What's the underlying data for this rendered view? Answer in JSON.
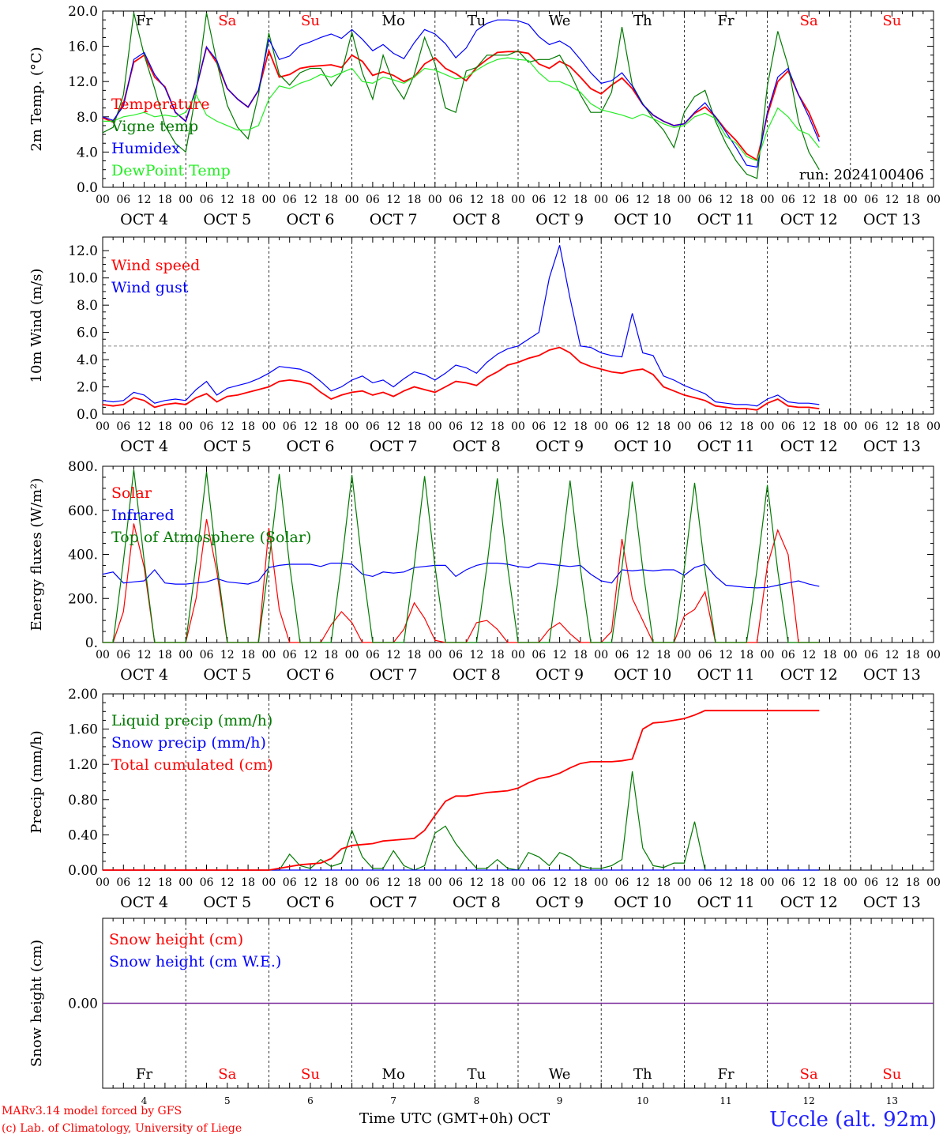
{
  "footer": {
    "model": "MARv3.14 model forced by GFS",
    "lab": "(c) Lab. of Climatology, University of Liege",
    "xlabel": "Time UTC (GMT+0h)",
    "month": "OCT",
    "station": "Uccle (alt. 92m)"
  },
  "colors": {
    "red": "#ff0000",
    "blue": "#0000ff",
    "green": "#007a00",
    "lightgreen": "#22ee22",
    "purple": "#7a2a9a"
  },
  "chart_data": [
    {
      "type": "line",
      "ylabel": "2m Temp. (°C)",
      "ylim": [
        0,
        20
      ],
      "yticks": [
        "0.0",
        "4.0",
        "8.0",
        "12.0",
        "16.0",
        "20.0"
      ],
      "x": "hours from 2024-10-04 00 UTC, step 3h (0..240)",
      "hour_tick_labels": [
        "00",
        "06",
        "12",
        "18"
      ],
      "date_labels": [
        "OCT 4",
        "OCT 5",
        "OCT 6",
        "OCT 7",
        "OCT 8",
        "OCT 9",
        "OCT 10",
        "OCT 11",
        "OCT 12",
        "OCT 13"
      ],
      "weekday_labels": [
        "Fr",
        "Sa",
        "Su",
        "Mo",
        "Tu",
        "We",
        "Th",
        "Fr",
        "Sa",
        "Su"
      ],
      "weekday_colors": [
        "#000000",
        "#ff0000",
        "#ff0000",
        "#000000",
        "#000000",
        "#000000",
        "#000000",
        "#000000",
        "#ff0000",
        "#ff0000"
      ],
      "annotation": "run: 2024100406",
      "series": [
        {
          "name": "Temperature",
          "color": "#ff0000",
          "values": [
            7.9,
            7.4,
            9.5,
            14.2,
            15.0,
            12.5,
            11.4,
            8.5,
            7.5,
            11.2,
            15.9,
            14.1,
            11.2,
            10.0,
            9.1,
            11.0,
            15.5,
            12.5,
            12.8,
            13.5,
            13.7,
            13.8,
            13.9,
            13.6,
            15.0,
            14.3,
            12.7,
            13.1,
            12.7,
            12.0,
            12.5,
            14.0,
            14.7,
            13.5,
            12.9,
            12.1,
            13.6,
            14.5,
            15.3,
            15.4,
            15.4,
            15.2,
            14.0,
            13.5,
            14.3,
            13.7,
            12.5,
            11.2,
            10.6,
            11.6,
            12.4,
            11.2,
            9.4,
            8.2,
            7.5,
            7.0,
            7.2,
            8.4,
            9.1,
            8.0,
            6.5,
            5.3,
            3.8,
            3.1,
            8.2,
            12.0,
            13.2,
            10.5,
            8.5,
            5.7,
            null
          ]
        },
        {
          "name": "Vigne temp",
          "color": "#007a00",
          "values": [
            6.2,
            6.8,
            10.5,
            19.8,
            15.0,
            11.2,
            7.0,
            5.0,
            4.0,
            10.8,
            19.8,
            14.2,
            9.3,
            6.8,
            5.5,
            10.5,
            17.5,
            12.8,
            11.6,
            13.0,
            13.5,
            13.5,
            11.5,
            13.0,
            17.6,
            13.0,
            10.0,
            15.0,
            11.8,
            10.0,
            12.8,
            17.0,
            14.0,
            9.0,
            8.5,
            13.2,
            13.6,
            15.0,
            15.0,
            15.0,
            15.5,
            14.2,
            14.5,
            14.5,
            15.0,
            13.0,
            10.5,
            8.5,
            8.5,
            10.8,
            18.2,
            11.6,
            9.5,
            7.8,
            6.5,
            4.5,
            8.5,
            10.3,
            11.0,
            7.5,
            5.0,
            3.0,
            1.5,
            1.0,
            11.5,
            17.7,
            13.8,
            7.5,
            4.0,
            2.0,
            null
          ]
        },
        {
          "name": "Humidex",
          "color": "#0000ff",
          "values": [
            8.0,
            7.6,
            9.2,
            14.5,
            15.3,
            12.8,
            11.3,
            8.5,
            7.5,
            11.2,
            15.9,
            14.4,
            11.2,
            10.0,
            9.1,
            11.0,
            16.8,
            14.5,
            14.9,
            16.1,
            16.5,
            17.0,
            17.4,
            16.9,
            17.9,
            16.8,
            15.5,
            16.2,
            15.2,
            14.6,
            16.4,
            17.9,
            17.4,
            16.3,
            14.7,
            15.8,
            17.8,
            18.6,
            19.0,
            19.0,
            18.9,
            18.5,
            17.1,
            16.2,
            16.6,
            15.9,
            14.5,
            13.0,
            11.8,
            12.1,
            13.0,
            11.5,
            9.4,
            8.2,
            7.5,
            7.0,
            7.2,
            8.5,
            9.6,
            8.0,
            6.3,
            4.5,
            2.5,
            2.3,
            8.5,
            12.5,
            13.5,
            10.5,
            8.0,
            5.2,
            null
          ]
        },
        {
          "name": "DewPoint Temp",
          "color": "#22ee22",
          "values": [
            7.5,
            7.5,
            8.0,
            8.2,
            8.5,
            8.0,
            8.2,
            8.0,
            8.5,
            10.5,
            8.2,
            7.5,
            7.0,
            6.5,
            6.5,
            7.0,
            10.0,
            11.5,
            11.2,
            11.8,
            12.2,
            12.8,
            12.5,
            13.0,
            13.5,
            12.0,
            11.8,
            12.5,
            12.2,
            11.8,
            12.5,
            13.5,
            13.3,
            12.8,
            12.3,
            12.5,
            13.3,
            14.0,
            14.5,
            14.7,
            14.5,
            14.4,
            13.0,
            12.0,
            12.0,
            11.5,
            10.8,
            9.5,
            8.8,
            8.5,
            8.2,
            7.8,
            8.3,
            7.8,
            7.2,
            6.8,
            7.0,
            8.0,
            8.4,
            7.8,
            5.8,
            5.0,
            3.5,
            3.0,
            6.5,
            9.0,
            8.0,
            6.5,
            6.0,
            4.5,
            null
          ]
        }
      ]
    },
    {
      "type": "line",
      "ylabel": "10m Wind (m/s)",
      "ylim": [
        0,
        13
      ],
      "yticks": [
        "0.0",
        "2.0",
        "4.0",
        "6.0",
        "8.0",
        "10.0",
        "12.0"
      ],
      "reference_line": 5,
      "series": [
        {
          "name": "Wind speed",
          "color": "#ff0000",
          "values": [
            0.7,
            0.6,
            0.7,
            1.2,
            1.0,
            0.5,
            0.7,
            0.8,
            0.7,
            1.2,
            1.5,
            0.9,
            1.3,
            1.4,
            1.6,
            1.8,
            2.0,
            2.4,
            2.5,
            2.4,
            2.2,
            1.6,
            1.1,
            1.4,
            1.6,
            1.7,
            1.4,
            1.6,
            1.3,
            1.7,
            2.0,
            1.8,
            1.6,
            2.0,
            2.4,
            2.3,
            2.1,
            2.7,
            3.1,
            3.6,
            3.8,
            4.1,
            4.3,
            4.7,
            4.9,
            4.5,
            3.8,
            3.5,
            3.3,
            3.1,
            3.0,
            3.2,
            3.3,
            2.9,
            2.0,
            1.7,
            1.4,
            1.2,
            1.0,
            0.6,
            0.5,
            0.4,
            0.4,
            0.3,
            0.8,
            1.1,
            0.6,
            0.5,
            0.5,
            0.4,
            null
          ]
        },
        {
          "name": "Wind gust",
          "color": "#0000ff",
          "values": [
            1.0,
            0.9,
            1.0,
            1.6,
            1.4,
            0.8,
            1.0,
            1.1,
            1.0,
            1.8,
            2.4,
            1.4,
            1.9,
            2.1,
            2.3,
            2.6,
            3.0,
            3.5,
            3.4,
            3.3,
            3.0,
            2.4,
            1.7,
            2.0,
            2.5,
            2.8,
            2.3,
            2.5,
            2.0,
            2.6,
            3.1,
            2.9,
            2.5,
            3.0,
            3.6,
            3.4,
            3.0,
            3.8,
            4.4,
            4.8,
            5.0,
            5.5,
            6.0,
            10.0,
            12.4,
            8.5,
            5.0,
            4.9,
            4.5,
            4.3,
            4.2,
            7.4,
            4.5,
            4.3,
            2.8,
            2.5,
            2.1,
            1.8,
            1.5,
            0.9,
            0.8,
            0.7,
            0.7,
            0.6,
            1.1,
            1.4,
            0.9,
            0.8,
            0.8,
            0.7,
            null
          ]
        }
      ]
    },
    {
      "type": "line",
      "ylabel": "Energy fluxes (W/m²)",
      "ylim": [
        0,
        800
      ],
      "yticks": [
        "0.",
        "200.",
        "400.",
        "600.",
        "800."
      ],
      "series": [
        {
          "name": "Solar",
          "color": "#ff0000",
          "values": [
            0,
            0,
            140,
            540,
            340,
            0,
            0,
            0,
            0,
            200,
            560,
            320,
            0,
            0,
            0,
            0,
            520,
            150,
            0,
            0,
            0,
            0,
            80,
            140,
            90,
            0,
            0,
            0,
            0,
            60,
            180,
            110,
            10,
            0,
            0,
            0,
            90,
            100,
            60,
            0,
            0,
            0,
            0,
            60,
            90,
            40,
            0,
            0,
            0,
            50,
            470,
            200,
            100,
            0,
            0,
            0,
            120,
            150,
            230,
            0,
            0,
            0,
            0,
            0,
            350,
            510,
            400,
            0,
            0,
            0,
            null
          ]
        },
        {
          "name": "Infrared",
          "color": "#0000ff",
          "values": [
            310,
            320,
            270,
            275,
            280,
            330,
            270,
            265,
            265,
            270,
            275,
            290,
            275,
            270,
            265,
            280,
            340,
            350,
            355,
            355,
            355,
            345,
            360,
            360,
            355,
            310,
            300,
            320,
            315,
            320,
            340,
            345,
            350,
            350,
            300,
            330,
            350,
            360,
            360,
            355,
            345,
            340,
            360,
            355,
            350,
            345,
            350,
            310,
            280,
            270,
            330,
            325,
            330,
            325,
            330,
            330,
            305,
            340,
            355,
            300,
            260,
            255,
            250,
            248,
            250,
            260,
            270,
            280,
            265,
            255,
            null
          ]
        },
        {
          "name": "Top of Atmosphere (Solar)",
          "color": "#007a00",
          "values": [
            0,
            0,
            370,
            785,
            370,
            0,
            0,
            0,
            0,
            360,
            775,
            360,
            0,
            0,
            0,
            0,
            360,
            765,
            350,
            0,
            0,
            0,
            0,
            355,
            760,
            350,
            0,
            0,
            0,
            0,
            350,
            755,
            345,
            0,
            0,
            0,
            0,
            345,
            745,
            340,
            0,
            0,
            0,
            0,
            345,
            735,
            335,
            0,
            0,
            0,
            340,
            730,
            335,
            0,
            0,
            0,
            335,
            725,
            330,
            0,
            0,
            0,
            0,
            330,
            715,
            325,
            0,
            0,
            0,
            0,
            null
          ]
        }
      ]
    },
    {
      "type": "line",
      "ylabel": "Precip (mm/h)",
      "ylim": [
        0,
        2.0
      ],
      "yticks": [
        "0.00",
        "0.40",
        "0.80",
        "1.20",
        "1.60",
        "2.00"
      ],
      "series": [
        {
          "name": "Liquid precip (mm/h)",
          "color": "#007a00",
          "values": [
            0,
            0,
            0,
            0,
            0,
            0,
            0,
            0,
            0,
            0,
            0,
            0,
            0,
            0,
            0,
            0,
            0,
            0,
            0.18,
            0.05,
            0.02,
            0.12,
            0.04,
            0.08,
            0.45,
            0.15,
            0.02,
            0.02,
            0.22,
            0.05,
            0.0,
            0.05,
            0.42,
            0.5,
            0.3,
            0.15,
            0.02,
            0.02,
            0.12,
            0.02,
            0.0,
            0.2,
            0.15,
            0.05,
            0.2,
            0.15,
            0.05,
            0.02,
            0.02,
            0.05,
            0.12,
            1.12,
            0.25,
            0.05,
            0.03,
            0.08,
            0.08,
            0.55,
            0.0,
            0.0,
            0.0,
            0,
            0,
            0,
            0,
            0,
            0,
            0,
            0,
            0,
            null
          ]
        },
        {
          "name": "Snow precip (mm/h)",
          "color": "#0000ff",
          "values": [
            0,
            0,
            0,
            0,
            0,
            0,
            0,
            0,
            0,
            0,
            0,
            0,
            0,
            0,
            0,
            0,
            0,
            0,
            0,
            0,
            0,
            0,
            0,
            0,
            0,
            0,
            0,
            0,
            0,
            0,
            0,
            0,
            0,
            0,
            0,
            0,
            0,
            0,
            0,
            0,
            0,
            0,
            0,
            0,
            0,
            0,
            0,
            0,
            0,
            0,
            0,
            0,
            0,
            0,
            0,
            0,
            0,
            0,
            0,
            0,
            0,
            0,
            0,
            0,
            0,
            0,
            0,
            0,
            0,
            0,
            null
          ]
        },
        {
          "name": "Total cumulated (cm)",
          "color": "#ff0000",
          "values": [
            0,
            0,
            0,
            0,
            0,
            0,
            0,
            0,
            0,
            0,
            0,
            0,
            0,
            0,
            0,
            0,
            0,
            0.02,
            0.04,
            0.06,
            0.07,
            0.08,
            0.13,
            0.24,
            0.28,
            0.29,
            0.3,
            0.33,
            0.34,
            0.35,
            0.36,
            0.45,
            0.62,
            0.78,
            0.84,
            0.84,
            0.86,
            0.88,
            0.89,
            0.9,
            0.93,
            0.99,
            1.04,
            1.06,
            1.1,
            1.16,
            1.21,
            1.23,
            1.23,
            1.23,
            1.24,
            1.26,
            1.6,
            1.67,
            1.68,
            1.7,
            1.72,
            1.76,
            1.81,
            1.81,
            1.81,
            1.81,
            1.81,
            1.81,
            1.81,
            1.81,
            1.81,
            1.81,
            1.81,
            1.81,
            null
          ]
        }
      ]
    },
    {
      "type": "line",
      "ylabel": "Snow height (cm)",
      "yticks": [
        "0.00"
      ],
      "day_numbers": [
        "4",
        "5",
        "6",
        "7",
        "8",
        "9",
        "10",
        "11",
        "12",
        "13"
      ],
      "series": [
        {
          "name": "Snow height (cm)",
          "color": "#ff0000",
          "values": [
            0,
            0
          ]
        },
        {
          "name": "Snow height (cm W.E.)",
          "color": "#0000ff",
          "values": [
            0,
            0
          ]
        }
      ]
    }
  ]
}
